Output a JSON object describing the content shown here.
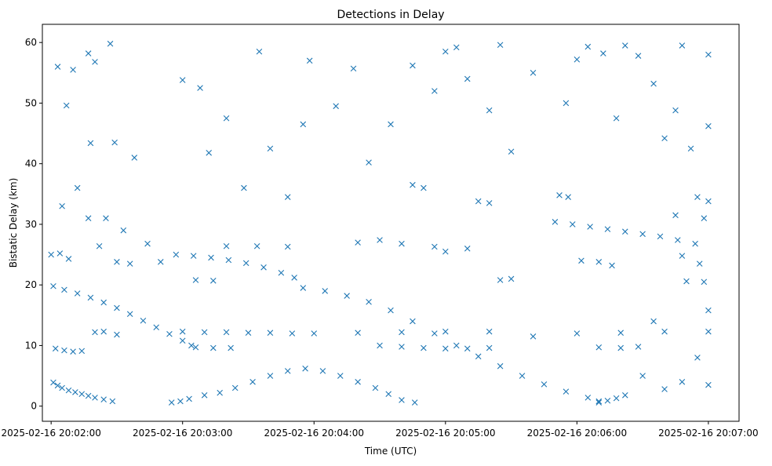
{
  "chart_data": {
    "type": "scatter",
    "title": "Detections in Delay",
    "xlabel": "Time (UTC)",
    "ylabel": "Bistatic Delay (km)",
    "marker": "x",
    "color": "#1f77b4",
    "xlim": [
      "2025-02-16 20:01:56",
      "2025-02-16 20:07:14"
    ],
    "ylim": [
      -2.5,
      63
    ],
    "grid": false,
    "x_ticks": [
      "2025-02-16 20:02:00",
      "2025-02-16 20:03:00",
      "2025-02-16 20:04:00",
      "2025-02-16 20:05:00",
      "2025-02-16 20:06:00",
      "2025-02-16 20:07:00"
    ],
    "y_ticks": [
      "0",
      "10",
      "20",
      "30",
      "40",
      "50",
      "60"
    ],
    "y_tick_values": [
      0,
      10,
      20,
      30,
      40,
      50,
      60
    ],
    "series": [
      {
        "description": "approximate decoded detections (time as UTC timestamp, delay in km)",
        "points": [
          [
            "2025-02-16 20:02:01",
            3.9
          ],
          [
            "2025-02-16 20:02:03",
            3.4
          ],
          [
            "2025-02-16 20:02:05",
            3.0
          ],
          [
            "2025-02-16 20:02:08",
            2.6
          ],
          [
            "2025-02-16 20:02:11",
            2.3
          ],
          [
            "2025-02-16 20:02:14",
            2.0
          ],
          [
            "2025-02-16 20:02:17",
            1.7
          ],
          [
            "2025-02-16 20:02:20",
            1.4
          ],
          [
            "2025-02-16 20:02:24",
            1.1
          ],
          [
            "2025-02-16 20:02:28",
            0.8
          ],
          [
            "2025-02-16 20:02:01",
            19.8
          ],
          [
            "2025-02-16 20:02:06",
            19.2
          ],
          [
            "2025-02-16 20:02:12",
            18.6
          ],
          [
            "2025-02-16 20:02:18",
            17.9
          ],
          [
            "2025-02-16 20:02:24",
            17.1
          ],
          [
            "2025-02-16 20:02:30",
            16.2
          ],
          [
            "2025-02-16 20:02:36",
            15.2
          ],
          [
            "2025-02-16 20:02:42",
            14.1
          ],
          [
            "2025-02-16 20:02:48",
            13.0
          ],
          [
            "2025-02-16 20:02:54",
            11.9
          ],
          [
            "2025-02-16 20:03:00",
            10.8
          ],
          [
            "2025-02-16 20:03:04",
            10.0
          ],
          [
            "2025-02-16 20:02:02",
            9.5
          ],
          [
            "2025-02-16 20:02:06",
            9.2
          ],
          [
            "2025-02-16 20:02:10",
            9.0
          ],
          [
            "2025-02-16 20:02:14",
            9.1
          ],
          [
            "2025-02-16 20:02:20",
            12.2
          ],
          [
            "2025-02-16 20:02:24",
            12.3
          ],
          [
            "2025-02-16 20:02:30",
            11.8
          ],
          [
            "2025-02-16 20:02:00",
            25.0
          ],
          [
            "2025-02-16 20:02:04",
            25.2
          ],
          [
            "2025-02-16 20:02:08",
            24.3
          ],
          [
            "2025-02-16 20:02:22",
            26.4
          ],
          [
            "2025-02-16 20:02:30",
            23.8
          ],
          [
            "2025-02-16 20:02:36",
            23.5
          ],
          [
            "2025-02-16 20:02:44",
            26.8
          ],
          [
            "2025-02-16 20:02:50",
            23.8
          ],
          [
            "2025-02-16 20:02:03",
            56.0
          ],
          [
            "2025-02-16 20:02:07",
            49.6
          ],
          [
            "2025-02-16 20:02:10",
            55.5
          ],
          [
            "2025-02-16 20:02:17",
            58.2
          ],
          [
            "2025-02-16 20:02:20",
            56.8
          ],
          [
            "2025-02-16 20:02:27",
            59.8
          ],
          [
            "2025-02-16 20:02:18",
            43.4
          ],
          [
            "2025-02-16 20:02:29",
            43.5
          ],
          [
            "2025-02-16 20:02:05",
            33.0
          ],
          [
            "2025-02-16 20:02:12",
            36.0
          ],
          [
            "2025-02-16 20:02:17",
            31.0
          ],
          [
            "2025-02-16 20:02:25",
            31.0
          ],
          [
            "2025-02-16 20:02:33",
            29.0
          ],
          [
            "2025-02-16 20:02:38",
            41.0
          ],
          [
            "2025-02-16 20:02:55",
            0.6
          ],
          [
            "2025-02-16 20:02:59",
            0.8
          ],
          [
            "2025-02-16 20:03:03",
            1.2
          ],
          [
            "2025-02-16 20:03:10",
            1.8
          ],
          [
            "2025-02-16 20:03:17",
            2.2
          ],
          [
            "2025-02-16 20:03:24",
            3.0
          ],
          [
            "2025-02-16 20:03:32",
            4.0
          ],
          [
            "2025-02-16 20:03:40",
            5.0
          ],
          [
            "2025-02-16 20:03:48",
            5.8
          ],
          [
            "2025-02-16 20:03:56",
            6.2
          ],
          [
            "2025-02-16 20:04:04",
            5.8
          ],
          [
            "2025-02-16 20:04:12",
            5.0
          ],
          [
            "2025-02-16 20:04:20",
            4.0
          ],
          [
            "2025-02-16 20:04:28",
            3.0
          ],
          [
            "2025-02-16 20:04:34",
            2.0
          ],
          [
            "2025-02-16 20:04:40",
            1.0
          ],
          [
            "2025-02-16 20:04:46",
            0.6
          ],
          [
            "2025-02-16 20:03:00",
            12.3
          ],
          [
            "2025-02-16 20:03:10",
            12.2
          ],
          [
            "2025-02-16 20:03:20",
            12.2
          ],
          [
            "2025-02-16 20:03:30",
            12.1
          ],
          [
            "2025-02-16 20:03:40",
            12.1
          ],
          [
            "2025-02-16 20:03:50",
            12.0
          ],
          [
            "2025-02-16 20:03:06",
            9.7
          ],
          [
            "2025-02-16 20:03:14",
            9.6
          ],
          [
            "2025-02-16 20:03:22",
            9.6
          ],
          [
            "2025-02-16 20:02:57",
            25.0
          ],
          [
            "2025-02-16 20:03:05",
            24.8
          ],
          [
            "2025-02-16 20:03:13",
            24.5
          ],
          [
            "2025-02-16 20:03:21",
            24.1
          ],
          [
            "2025-02-16 20:03:29",
            23.6
          ],
          [
            "2025-02-16 20:03:37",
            22.9
          ],
          [
            "2025-02-16 20:03:45",
            22.0
          ],
          [
            "2025-02-16 20:03:51",
            21.2
          ],
          [
            "2025-02-16 20:03:06",
            20.8
          ],
          [
            "2025-02-16 20:03:14",
            20.7
          ],
          [
            "2025-02-16 20:03:20",
            26.4
          ],
          [
            "2025-02-16 20:03:34",
            26.4
          ],
          [
            "2025-02-16 20:03:48",
            26.3
          ],
          [
            "2025-02-16 20:03:00",
            53.8
          ],
          [
            "2025-02-16 20:03:08",
            52.5
          ],
          [
            "2025-02-16 20:03:12",
            41.8
          ],
          [
            "2025-02-16 20:03:20",
            47.5
          ],
          [
            "2025-02-16 20:03:28",
            36.0
          ],
          [
            "2025-02-16 20:03:35",
            58.5
          ],
          [
            "2025-02-16 20:03:40",
            42.5
          ],
          [
            "2025-02-16 20:03:48",
            34.5
          ],
          [
            "2025-02-16 20:03:55",
            46.5
          ],
          [
            "2025-02-16 20:03:58",
            57.0
          ],
          [
            "2025-02-16 20:03:55",
            19.5
          ],
          [
            "2025-02-16 20:04:05",
            19.0
          ],
          [
            "2025-02-16 20:04:15",
            18.2
          ],
          [
            "2025-02-16 20:04:25",
            17.2
          ],
          [
            "2025-02-16 20:04:35",
            15.8
          ],
          [
            "2025-02-16 20:04:45",
            14.0
          ],
          [
            "2025-02-16 20:04:55",
            12.0
          ],
          [
            "2025-02-16 20:05:05",
            10.0
          ],
          [
            "2025-02-16 20:05:15",
            8.2
          ],
          [
            "2025-02-16 20:05:25",
            6.6
          ],
          [
            "2025-02-16 20:05:35",
            5.0
          ],
          [
            "2025-02-16 20:05:45",
            3.6
          ],
          [
            "2025-02-16 20:05:55",
            2.4
          ],
          [
            "2025-02-16 20:06:05",
            1.4
          ],
          [
            "2025-02-16 20:06:10",
            0.8
          ],
          [
            "2025-02-16 20:04:00",
            12.0
          ],
          [
            "2025-02-16 20:04:20",
            12.1
          ],
          [
            "2025-02-16 20:04:40",
            12.2
          ],
          [
            "2025-02-16 20:05:00",
            12.3
          ],
          [
            "2025-02-16 20:05:20",
            12.3
          ],
          [
            "2025-02-16 20:05:40",
            11.5
          ],
          [
            "2025-02-16 20:06:00",
            12.0
          ],
          [
            "2025-02-16 20:06:20",
            12.1
          ],
          [
            "2025-02-16 20:06:40",
            12.3
          ],
          [
            "2025-02-16 20:07:00",
            12.3
          ],
          [
            "2025-02-16 20:04:30",
            10.0
          ],
          [
            "2025-02-16 20:04:40",
            9.8
          ],
          [
            "2025-02-16 20:04:50",
            9.6
          ],
          [
            "2025-02-16 20:05:00",
            9.5
          ],
          [
            "2025-02-16 20:05:10",
            9.5
          ],
          [
            "2025-02-16 20:05:20",
            9.6
          ],
          [
            "2025-02-16 20:04:20",
            27.0
          ],
          [
            "2025-02-16 20:04:30",
            27.4
          ],
          [
            "2025-02-16 20:04:40",
            26.8
          ],
          [
            "2025-02-16 20:04:45",
            36.5
          ],
          [
            "2025-02-16 20:04:50",
            36.0
          ],
          [
            "2025-02-16 20:04:55",
            26.3
          ],
          [
            "2025-02-16 20:05:00",
            25.5
          ],
          [
            "2025-02-16 20:05:10",
            26.0
          ],
          [
            "2025-02-16 20:05:15",
            33.8
          ],
          [
            "2025-02-16 20:05:20",
            33.5
          ],
          [
            "2025-02-16 20:05:25",
            20.8
          ],
          [
            "2025-02-16 20:05:30",
            21.0
          ],
          [
            "2025-02-16 20:04:10",
            49.5
          ],
          [
            "2025-02-16 20:04:18",
            55.7
          ],
          [
            "2025-02-16 20:04:25",
            40.2
          ],
          [
            "2025-02-16 20:04:35",
            46.5
          ],
          [
            "2025-02-16 20:04:45",
            56.2
          ],
          [
            "2025-02-16 20:04:55",
            52.0
          ],
          [
            "2025-02-16 20:05:00",
            58.5
          ],
          [
            "2025-02-16 20:05:05",
            59.2
          ],
          [
            "2025-02-16 20:05:10",
            54.0
          ],
          [
            "2025-02-16 20:05:20",
            48.8
          ],
          [
            "2025-02-16 20:05:25",
            59.6
          ],
          [
            "2025-02-16 20:05:30",
            42.0
          ],
          [
            "2025-02-16 20:05:40",
            55.0
          ],
          [
            "2025-02-16 20:05:55",
            50.0
          ],
          [
            "2025-02-16 20:06:05",
            59.3
          ],
          [
            "2025-02-16 20:05:50",
            30.4
          ],
          [
            "2025-02-16 20:05:58",
            30.0
          ],
          [
            "2025-02-16 20:06:06",
            29.6
          ],
          [
            "2025-02-16 20:06:14",
            29.2
          ],
          [
            "2025-02-16 20:06:22",
            28.8
          ],
          [
            "2025-02-16 20:06:30",
            28.4
          ],
          [
            "2025-02-16 20:06:38",
            28.0
          ],
          [
            "2025-02-16 20:06:46",
            27.4
          ],
          [
            "2025-02-16 20:06:54",
            26.8
          ],
          [
            "2025-02-16 20:06:02",
            24.0
          ],
          [
            "2025-02-16 20:06:10",
            23.8
          ],
          [
            "2025-02-16 20:06:16",
            23.2
          ],
          [
            "2025-02-16 20:05:52",
            34.8
          ],
          [
            "2025-02-16 20:05:56",
            34.5
          ],
          [
            "2025-02-16 20:06:10",
            0.6
          ],
          [
            "2025-02-16 20:06:14",
            0.9
          ],
          [
            "2025-02-16 20:06:18",
            1.3
          ],
          [
            "2025-02-16 20:06:22",
            1.8
          ],
          [
            "2025-02-16 20:06:20",
            9.6
          ],
          [
            "2025-02-16 20:06:28",
            9.8
          ],
          [
            "2025-02-16 20:06:10",
            9.7
          ],
          [
            "2025-02-16 20:06:48",
            24.8
          ],
          [
            "2025-02-16 20:06:56",
            23.5
          ],
          [
            "2025-02-16 20:06:50",
            20.6
          ],
          [
            "2025-02-16 20:06:45",
            31.5
          ],
          [
            "2025-02-16 20:06:55",
            34.5
          ],
          [
            "2025-02-16 20:06:58",
            31.0
          ],
          [
            "2025-02-16 20:07:00",
            33.8
          ],
          [
            "2025-02-16 20:06:00",
            57.2
          ],
          [
            "2025-02-16 20:06:12",
            58.2
          ],
          [
            "2025-02-16 20:06:22",
            59.5
          ],
          [
            "2025-02-16 20:06:28",
            57.8
          ],
          [
            "2025-02-16 20:06:35",
            53.2
          ],
          [
            "2025-02-16 20:06:48",
            59.5
          ],
          [
            "2025-02-16 20:06:45",
            48.8
          ],
          [
            "2025-02-16 20:06:52",
            42.5
          ],
          [
            "2025-02-16 20:07:00",
            46.2
          ],
          [
            "2025-02-16 20:07:00",
            58.0
          ],
          [
            "2025-02-16 20:06:40",
            44.2
          ],
          [
            "2025-02-16 20:06:18",
            47.5
          ],
          [
            "2025-02-16 20:06:48",
            4.0
          ],
          [
            "2025-02-16 20:06:40",
            2.8
          ],
          [
            "2025-02-16 20:07:00",
            3.5
          ],
          [
            "2025-02-16 20:06:30",
            5.0
          ],
          [
            "2025-02-16 20:06:55",
            8.0
          ],
          [
            "2025-02-16 20:06:35",
            14.0
          ],
          [
            "2025-02-16 20:07:00",
            15.8
          ],
          [
            "2025-02-16 20:06:58",
            20.5
          ]
        ]
      }
    ]
  }
}
